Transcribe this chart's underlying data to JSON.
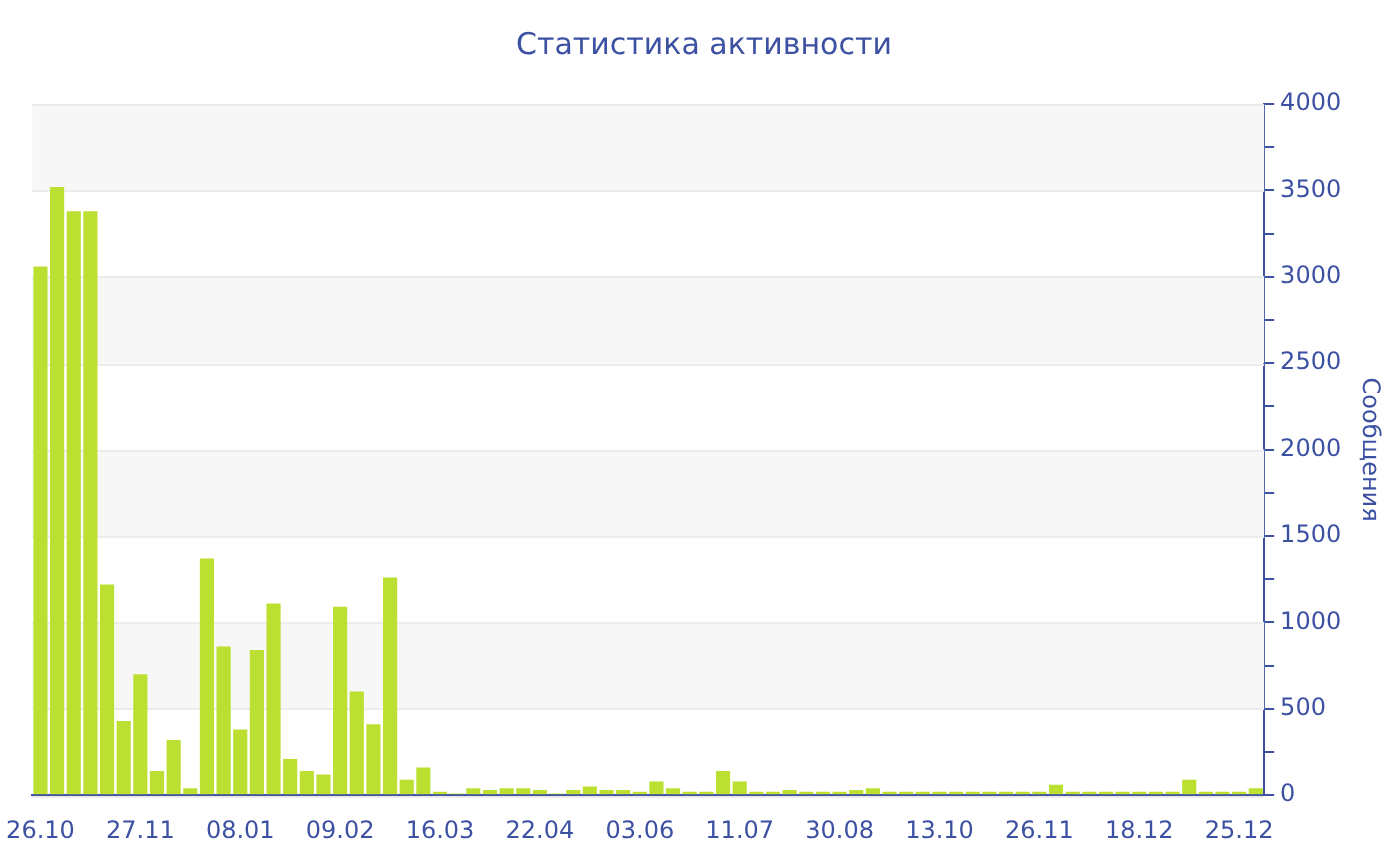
{
  "chart_data": {
    "type": "bar",
    "title": "Статистика активности",
    "ylabel": "Сообщения",
    "color": "#bbe031",
    "categories": [
      "26.10",
      null,
      null,
      null,
      null,
      null,
      "27.11",
      null,
      null,
      null,
      null,
      null,
      "08.01",
      null,
      null,
      null,
      null,
      null,
      "09.02",
      null,
      null,
      null,
      null,
      null,
      "16.03",
      null,
      null,
      null,
      null,
      null,
      "22.04",
      null,
      null,
      null,
      null,
      null,
      "03.06",
      null,
      null,
      null,
      null,
      null,
      "11.07",
      null,
      null,
      null,
      null,
      null,
      "30.08",
      null,
      null,
      null,
      null,
      null,
      "13.10",
      null,
      null,
      null,
      null,
      null,
      "26.11",
      null,
      null,
      null,
      null,
      null,
      "18.12",
      null,
      null,
      null,
      null,
      null,
      "25.12",
      null
    ],
    "values": [
      3060,
      3520,
      3380,
      3380,
      1220,
      430,
      700,
      140,
      320,
      40,
      1370,
      860,
      380,
      840,
      1110,
      210,
      140,
      120,
      1090,
      600,
      410,
      1260,
      90,
      160,
      20,
      10,
      40,
      30,
      40,
      40,
      30,
      10,
      30,
      50,
      30,
      30,
      20,
      80,
      40,
      20,
      20,
      140,
      80,
      20,
      20,
      30,
      20,
      20,
      20,
      30,
      40,
      20,
      20,
      20,
      20,
      20,
      20,
      20,
      20,
      20,
      20,
      60,
      20,
      20,
      20,
      20,
      20,
      20,
      20,
      90,
      20,
      20,
      20,
      40
    ],
    "ylim": [
      0,
      4000
    ],
    "yticks": [
      0,
      {
        "value": 250,
        "label": null
      },
      500,
      {
        "value": 750,
        "label": null
      },
      1000,
      {
        "value": 1250,
        "label": null
      },
      1500,
      {
        "value": 1750,
        "label": null
      },
      2000,
      {
        "value": 2250,
        "label": null
      },
      2500,
      {
        "value": 2750,
        "label": null
      },
      3000,
      {
        "value": 3250,
        "label": null
      },
      3500,
      {
        "value": 3750,
        "label": null
      },
      4000
    ],
    "grid": true,
    "legend": false
  }
}
